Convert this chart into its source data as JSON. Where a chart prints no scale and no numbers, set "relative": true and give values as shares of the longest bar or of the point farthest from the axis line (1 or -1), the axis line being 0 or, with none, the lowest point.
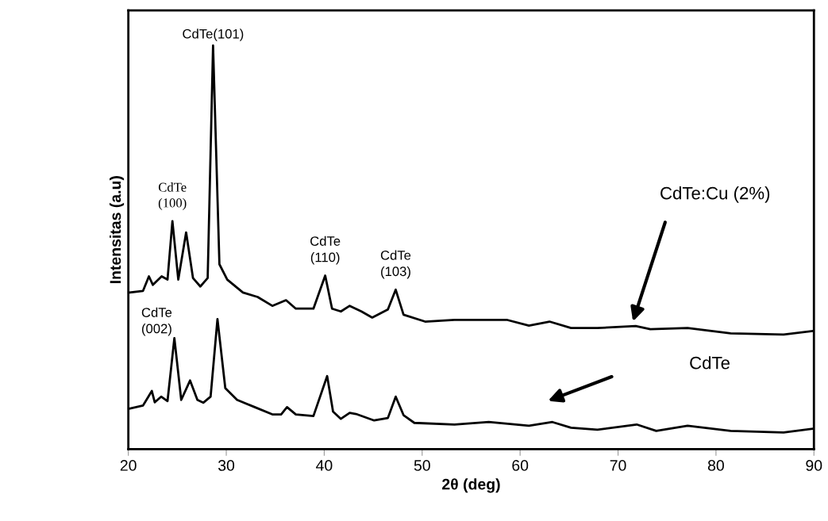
{
  "chart_data": {
    "type": "line",
    "xlabel": "2θ (deg)",
    "ylabel": "Intensitas (a.u)",
    "relative": true,
    "xlim": [
      20,
      90
    ],
    "xticks": [
      20,
      30,
      40,
      50,
      60,
      70,
      80,
      90
    ],
    "grid": false,
    "marker": "none",
    "line_style": "solid",
    "series": [
      {
        "color": "#000000",
        "x": [
          20.1,
          21.5,
          22.1,
          22.5,
          23.4,
          24.0,
          24.5,
          25.1,
          25.9,
          26.6,
          27.35,
          28.1,
          28.65,
          29.3,
          30.1,
          31.7,
          33.2,
          34.7,
          36.1,
          37.1,
          38.9,
          40.1,
          40.8,
          41.7,
          42.6,
          43.8,
          44.9,
          46.5,
          47.3,
          48.1,
          50.3,
          53.3,
          56.5,
          58.7,
          60.9,
          63.0,
          65.2,
          66.8,
          67.9,
          71.8,
          73.3,
          77.1,
          81.5,
          86.9,
          90
        ],
        "values": [
          0.388,
          0.392,
          0.428,
          0.407,
          0.428,
          0.42,
          0.565,
          0.42,
          0.537,
          0.424,
          0.403,
          0.424,
          1,
          0.458,
          0.42,
          0.388,
          0.377,
          0.355,
          0.369,
          0.348,
          0.348,
          0.43,
          0.348,
          0.341,
          0.355,
          0.341,
          0.326,
          0.346,
          0.395,
          0.333,
          0.316,
          0.32,
          0.32,
          0.32,
          0.306,
          0.316,
          0.3,
          0.3,
          0.3,
          0.305,
          0.297,
          0.3,
          0.287,
          0.284,
          0.293
        ]
      },
      {
        "color": "#000000",
        "x": [
          20.1,
          21.5,
          22.4,
          22.7,
          23.35,
          24.0,
          24.7,
          25.4,
          26.3,
          27.05,
          27.65,
          28.4,
          29.1,
          29.9,
          31.1,
          32.9,
          34.7,
          35.6,
          36.2,
          37.1,
          38.9,
          40.3,
          40.9,
          41.7,
          42.6,
          43.25,
          45.1,
          46.5,
          47.3,
          48.1,
          49.2,
          53.3,
          56.8,
          60.9,
          63.3,
          65.2,
          67.9,
          71.9,
          73.9,
          77.1,
          81.5,
          86.9,
          90
        ],
        "values": [
          0.1,
          0.108,
          0.144,
          0.116,
          0.13,
          0.119,
          0.275,
          0.122,
          0.17,
          0.122,
          0.115,
          0.13,
          0.322,
          0.151,
          0.122,
          0.104,
          0.086,
          0.086,
          0.104,
          0.086,
          0.082,
          0.181,
          0.093,
          0.075,
          0.09,
          0.087,
          0.071,
          0.077,
          0.13,
          0.084,
          0.065,
          0.061,
          0.067,
          0.058,
          0.067,
          0.053,
          0.048,
          0.061,
          0.045,
          0.058,
          0.045,
          0.041,
          0.051
        ]
      }
    ],
    "annotations": [
      {
        "text": "CdTe(101)",
        "x": 28.65,
        "y": 1
      },
      {
        "text": "CdTe\n(100)",
        "x": 24.5,
        "y": 0.565
      },
      {
        "text": "CdTe\n(110)",
        "x": 40.1,
        "y": 0.43
      },
      {
        "text": "CdTe\n(103)",
        "x": 47.3,
        "y": 0.395
      },
      {
        "text": "CdTe\n(002)",
        "x": 24.7,
        "y": 0.275
      },
      "CdTe:Cu (2%)",
      "CdTe"
    ]
  }
}
